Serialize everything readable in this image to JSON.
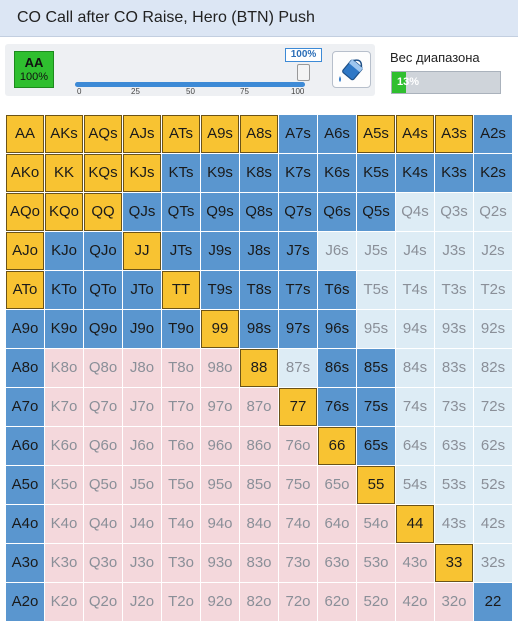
{
  "title": "CO Call after CO Raise, Hero (BTN) Push",
  "selected_hand": {
    "hand": "AA",
    "percent": "100%"
  },
  "slider": {
    "value_label": "100%",
    "value": 100,
    "ticks": [
      "0",
      "25",
      "50",
      "75",
      "100"
    ]
  },
  "paint_icon": "paint-bucket-icon",
  "range_weight": {
    "label": "Вес диапазона",
    "value_label": "13%",
    "value": 13
  },
  "colors": {
    "push": "#f8c332",
    "blue": "#5a96cf",
    "light_blue": "#ddecf5",
    "pink": "#f4d8dc",
    "green": "#2fbf2f"
  },
  "grid": {
    "hands": [
      [
        "AA",
        "AKs",
        "AQs",
        "AJs",
        "ATs",
        "A9s",
        "A8s",
        "A7s",
        "A6s",
        "A5s",
        "A4s",
        "A3s",
        "A2s"
      ],
      [
        "AKo",
        "KK",
        "KQs",
        "KJs",
        "KTs",
        "K9s",
        "K8s",
        "K7s",
        "K6s",
        "K5s",
        "K4s",
        "K3s",
        "K2s"
      ],
      [
        "AQo",
        "KQo",
        "QQ",
        "QJs",
        "QTs",
        "Q9s",
        "Q8s",
        "Q7s",
        "Q6s",
        "Q5s",
        "Q4s",
        "Q3s",
        "Q2s"
      ],
      [
        "AJo",
        "KJo",
        "QJo",
        "JJ",
        "JTs",
        "J9s",
        "J8s",
        "J7s",
        "J6s",
        "J5s",
        "J4s",
        "J3s",
        "J2s"
      ],
      [
        "ATo",
        "KTo",
        "QTo",
        "JTo",
        "TT",
        "T9s",
        "T8s",
        "T7s",
        "T6s",
        "T5s",
        "T4s",
        "T3s",
        "T2s"
      ],
      [
        "A9o",
        "K9o",
        "Q9o",
        "J9o",
        "T9o",
        "99",
        "98s",
        "97s",
        "96s",
        "95s",
        "94s",
        "93s",
        "92s"
      ],
      [
        "A8o",
        "K8o",
        "Q8o",
        "J8o",
        "T8o",
        "98o",
        "88",
        "87s",
        "86s",
        "85s",
        "84s",
        "83s",
        "82s"
      ],
      [
        "A7o",
        "K7o",
        "Q7o",
        "J7o",
        "T7o",
        "97o",
        "87o",
        "77",
        "76s",
        "75s",
        "74s",
        "73s",
        "72s"
      ],
      [
        "A6o",
        "K6o",
        "Q6o",
        "J6o",
        "T6o",
        "96o",
        "86o",
        "76o",
        "66",
        "65s",
        "64s",
        "63s",
        "62s"
      ],
      [
        "A5o",
        "K5o",
        "Q5o",
        "J5o",
        "T5o",
        "95o",
        "85o",
        "75o",
        "65o",
        "55",
        "54s",
        "53s",
        "52s"
      ],
      [
        "A4o",
        "K4o",
        "Q4o",
        "J4o",
        "T4o",
        "94o",
        "84o",
        "74o",
        "64o",
        "54o",
        "44",
        "43s",
        "42s"
      ],
      [
        "A3o",
        "K3o",
        "Q3o",
        "J3o",
        "T3o",
        "93o",
        "83o",
        "73o",
        "63o",
        "53o",
        "43o",
        "33",
        "32s"
      ],
      [
        "A2o",
        "K2o",
        "Q2o",
        "J2o",
        "T2o",
        "92o",
        "82o",
        "72o",
        "62o",
        "52o",
        "42o",
        "32o",
        "22"
      ]
    ],
    "states": [
      "aaaaaaabbaaab",
      "aaaabbbbbbbbb",
      "aaabbbbbbbccc",
      "abbabbbbccccc",
      "abbbabbbbcccc",
      "bbbbbabbbcccc",
      "bddddda.bbccc",
      "bddddddabbccc",
      "bdddddddabccc",
      "bdddddddda.cc",
      "bddddddddda.c",
      "bdddddddddda.",
      "bdddddddddddb"
    ]
  }
}
